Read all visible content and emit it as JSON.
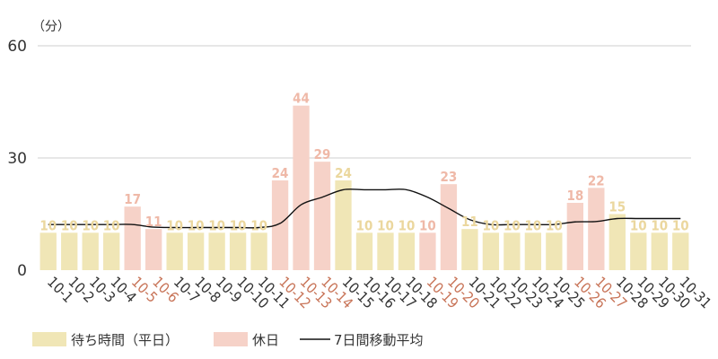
{
  "chart_data": {
    "type": "bar",
    "unit_label": "（分）",
    "ylim": [
      0,
      60
    ],
    "yticks": [
      0,
      30,
      60
    ],
    "grid": true,
    "categories": [
      "10-1",
      "10-2",
      "10-3",
      "10-4",
      "10-5",
      "10-6",
      "10-7",
      "10-8",
      "10-9",
      "10-10",
      "10-11",
      "10-12",
      "10-13",
      "10-14",
      "10-15",
      "10-16",
      "10-17",
      "10-18",
      "10-19",
      "10-20",
      "10-21",
      "10-22",
      "10-23",
      "10-24",
      "10-25",
      "10-26",
      "10-27",
      "10-28",
      "10-29",
      "10-30",
      "10-31"
    ],
    "values": [
      10,
      10,
      10,
      10,
      17,
      11,
      10,
      10,
      10,
      10,
      10,
      24,
      44,
      29,
      24,
      10,
      10,
      10,
      10,
      23,
      11,
      10,
      10,
      10,
      10,
      18,
      22,
      15,
      10,
      10,
      10
    ],
    "day_types": [
      "weekday",
      "weekday",
      "weekday",
      "weekday",
      "holiday",
      "holiday",
      "weekday",
      "weekday",
      "weekday",
      "weekday",
      "weekday",
      "holiday",
      "holiday",
      "holiday",
      "weekday",
      "weekday",
      "weekday",
      "weekday",
      "holiday",
      "holiday",
      "weekday",
      "weekday",
      "weekday",
      "weekday",
      "weekday",
      "holiday",
      "holiday",
      "weekday",
      "weekday",
      "weekday",
      "weekday"
    ],
    "moving_average": [
      12.2,
      12.2,
      12.2,
      12.2,
      12.2,
      11.5,
      11.4,
      11.4,
      11.4,
      11.4,
      11.4,
      12.5,
      17.5,
      19.5,
      21.5,
      21.5,
      21.5,
      21.5,
      19.5,
      16.5,
      13.5,
      12.2,
      12.2,
      12.2,
      12.2,
      12.9,
      13.0,
      13.8,
      13.8,
      13.8,
      13.8
    ],
    "series": [
      {
        "name": "待ち時間（平日）",
        "type": "bar",
        "color": "#f0e6b6"
      },
      {
        "name": "休日",
        "type": "bar",
        "color": "#f6d2c8"
      },
      {
        "name": "7日間移動平均",
        "type": "line",
        "color": "#111111"
      }
    ],
    "colors": {
      "weekday_bar": "#f0e6b6",
      "holiday_bar": "#f6d2c8",
      "weekday_label": "#ebd79e",
      "holiday_label": "#efb9a8",
      "holiday_tick": "#c87458",
      "weekday_tick": "#333333",
      "grid": "#cfcfcf"
    },
    "legend_position": "bottom-left"
  }
}
